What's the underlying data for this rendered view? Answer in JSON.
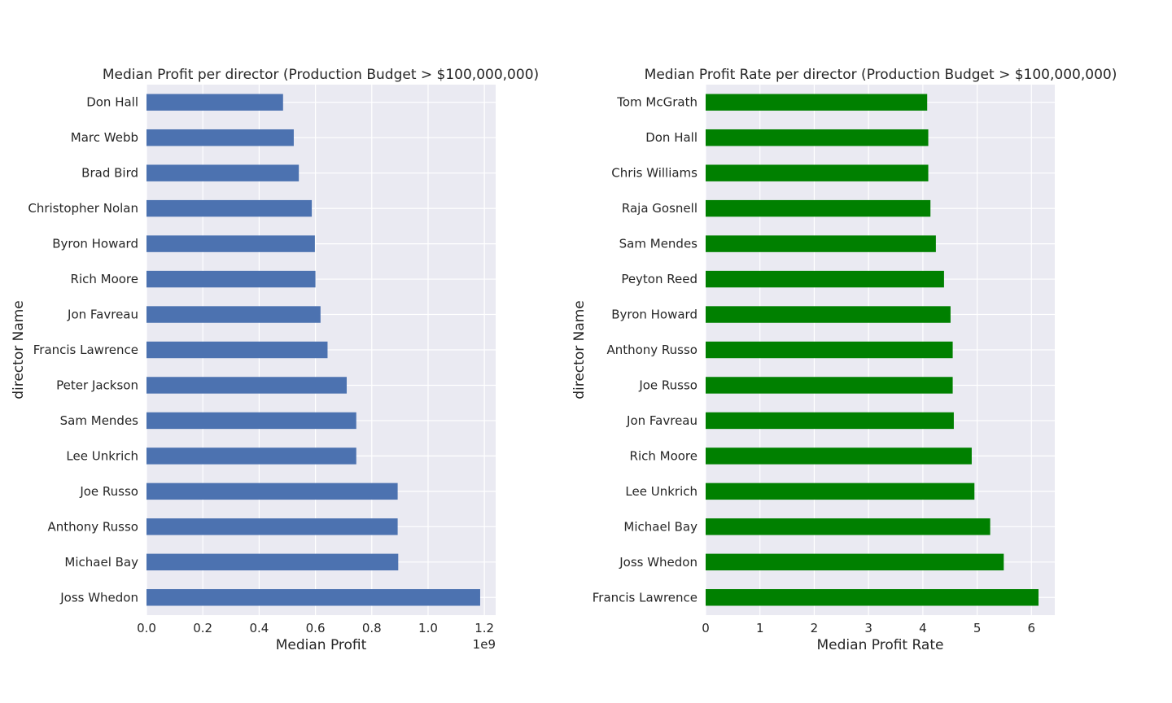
{
  "chart_data": [
    {
      "type": "bar",
      "orientation": "horizontal",
      "title": "Median Profit per director (Production Budget > $100,000,000)",
      "xlabel": "Median Profit",
      "ylabel": "director Name",
      "offset_label": "1e9",
      "xlim": [
        0,
        1.24
      ],
      "xticks": [
        "0.0",
        "0.2",
        "0.4",
        "0.6",
        "0.8",
        "1.0",
        "1.2"
      ],
      "tick_values": [
        0,
        0.2,
        0.4,
        0.6,
        0.8,
        1.0,
        1.2
      ],
      "grid": true,
      "color": "#4c72b0",
      "categories": [
        "Don Hall",
        "Marc Webb",
        "Brad Bird",
        "Christopher Nolan",
        "Byron Howard",
        "Rich Moore",
        "Jon Favreau",
        "Francis Lawrence",
        "Peter Jackson",
        "Sam Mendes",
        "Lee Unkrich",
        "Joe Russo",
        "Anthony Russo",
        "Michael Bay",
        "Joss Whedon"
      ],
      "values": [
        0.485,
        0.523,
        0.541,
        0.587,
        0.598,
        0.6,
        0.618,
        0.643,
        0.711,
        0.745,
        0.745,
        0.892,
        0.892,
        0.894,
        1.185
      ]
    },
    {
      "type": "bar",
      "orientation": "horizontal",
      "title": "Median Profit Rate per director (Production Budget > $100,000,000)",
      "xlabel": "Median Profit Rate",
      "ylabel": "director Name",
      "xlim": [
        0,
        6.43
      ],
      "xticks": [
        "0",
        "1",
        "2",
        "3",
        "4",
        "5",
        "6"
      ],
      "tick_values": [
        0,
        1,
        2,
        3,
        4,
        5,
        6
      ],
      "grid": true,
      "color": "#008000",
      "categories": [
        "Tom McGrath",
        "Don Hall",
        "Chris Williams",
        "Raja Gosnell",
        "Sam Mendes",
        "Peyton Reed",
        "Byron Howard",
        "Anthony Russo",
        "Joe Russo",
        "Jon Favreau",
        "Rich Moore",
        "Lee Unkrich",
        "Michael Bay",
        "Joss Whedon",
        "Francis Lawrence"
      ],
      "values": [
        4.08,
        4.1,
        4.1,
        4.14,
        4.24,
        4.39,
        4.51,
        4.55,
        4.55,
        4.57,
        4.9,
        4.95,
        5.24,
        5.49,
        6.13
      ]
    }
  ]
}
